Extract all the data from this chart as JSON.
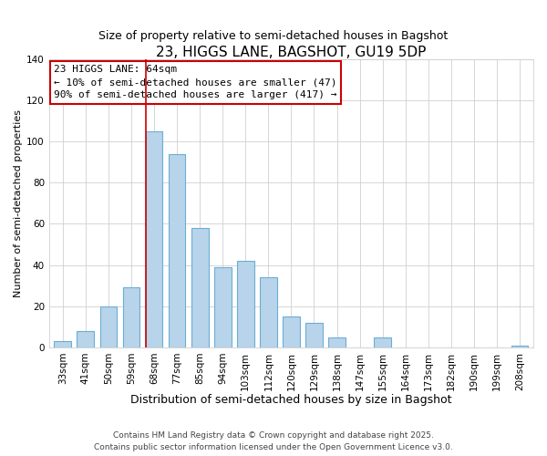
{
  "title": "23, HIGGS LANE, BAGSHOT, GU19 5DP",
  "subtitle": "Size of property relative to semi-detached houses in Bagshot",
  "xlabel": "Distribution of semi-detached houses by size in Bagshot",
  "ylabel": "Number of semi-detached properties",
  "bar_labels": [
    "33sqm",
    "41sqm",
    "50sqm",
    "59sqm",
    "68sqm",
    "77sqm",
    "85sqm",
    "94sqm",
    "103sqm",
    "112sqm",
    "120sqm",
    "129sqm",
    "138sqm",
    "147sqm",
    "155sqm",
    "164sqm",
    "173sqm",
    "182sqm",
    "190sqm",
    "199sqm",
    "208sqm"
  ],
  "bar_values": [
    3,
    8,
    20,
    29,
    105,
    94,
    58,
    39,
    42,
    34,
    15,
    12,
    5,
    0,
    5,
    0,
    0,
    0,
    0,
    0,
    1
  ],
  "bar_color": "#b8d4ea",
  "bar_edge_color": "#6aaed6",
  "highlight_line_index": 4,
  "highlight_line_color": "#cc0000",
  "annotation_title": "23 HIGGS LANE: 64sqm",
  "annotation_line1": "← 10% of semi-detached houses are smaller (47)",
  "annotation_line2": "90% of semi-detached houses are larger (417) →",
  "annotation_box_color": "#ffffff",
  "annotation_box_edge": "#cc0000",
  "ylim": [
    0,
    140
  ],
  "yticks": [
    0,
    20,
    40,
    60,
    80,
    100,
    120,
    140
  ],
  "grid_color": "#d0d0d0",
  "background_color": "#ffffff",
  "footer_line1": "Contains HM Land Registry data © Crown copyright and database right 2025.",
  "footer_line2": "Contains public sector information licensed under the Open Government Licence v3.0.",
  "title_fontsize": 11,
  "subtitle_fontsize": 9,
  "xlabel_fontsize": 9,
  "ylabel_fontsize": 8,
  "tick_fontsize": 7.5,
  "annotation_fontsize": 8,
  "footer_fontsize": 6.5
}
